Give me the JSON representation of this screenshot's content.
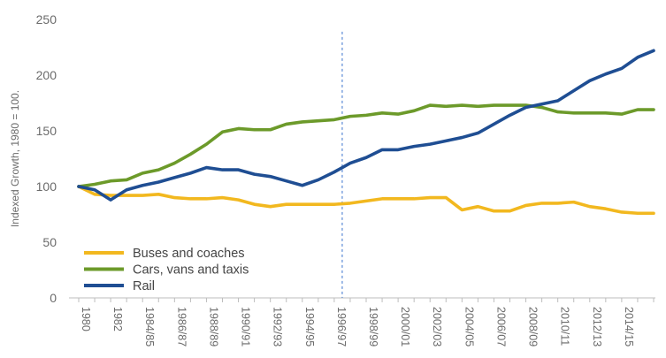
{
  "chart_data": {
    "type": "line",
    "title": "",
    "xlabel": "",
    "ylabel": "Indexed Growth, 1980 = 100.",
    "ylim": [
      0,
      250
    ],
    "yticks": [
      0,
      50,
      100,
      150,
      200,
      250
    ],
    "grid": false,
    "legend_position": "bottom-left",
    "x_tick_labels": [
      "1980",
      "1982",
      "1984/85",
      "1986/87",
      "1988/89",
      "1990/91",
      "1992/93",
      "1994/95",
      "1996/97",
      "1998/99",
      "2000/01",
      "2002/03",
      "2004/05",
      "2006/07",
      "2008/09",
      "2010/11",
      "2012/13",
      "2014/15"
    ],
    "x": [
      "1980",
      "1981",
      "1982",
      "1983",
      "1984/85",
      "1985/86",
      "1986/87",
      "1987/88",
      "1988/89",
      "1989/90",
      "1990/91",
      "1991/92",
      "1992/93",
      "1993/94",
      "1994/95",
      "1995/96",
      "1996/97",
      "1997/98",
      "1998/99",
      "1999/00",
      "2000/01",
      "2001/02",
      "2002/03",
      "2003/04",
      "2004/05",
      "2005/06",
      "2006/07",
      "2007/08",
      "2008/09",
      "2009/10",
      "2010/11",
      "2011/12",
      "2012/13",
      "2013/14",
      "2014/15",
      "2015/16",
      "2016/17"
    ],
    "reference_line_after": "1996/97",
    "series": [
      {
        "name": "Buses and coaches",
        "color": "#f2b81f",
        "values": [
          100,
          93,
          92,
          92,
          92,
          93,
          90,
          89,
          89,
          90,
          88,
          84,
          82,
          84,
          84,
          84,
          84,
          85,
          87,
          89,
          89,
          89,
          90,
          90,
          79,
          82,
          78,
          78,
          83,
          85,
          85,
          86,
          82,
          80,
          77,
          76,
          76
        ]
      },
      {
        "name": "Cars, vans and taxis",
        "color": "#6c9a2a",
        "values": [
          100,
          102,
          105,
          106,
          112,
          115,
          121,
          129,
          138,
          149,
          152,
          151,
          151,
          156,
          158,
          159,
          160,
          163,
          164,
          166,
          165,
          168,
          173,
          172,
          173,
          172,
          173,
          173,
          173,
          171,
          167,
          166,
          166,
          166,
          165,
          169,
          169
        ]
      },
      {
        "name": "Rail",
        "color": "#1f4e93",
        "values": [
          100,
          97,
          88,
          97,
          101,
          104,
          108,
          112,
          117,
          115,
          115,
          111,
          109,
          105,
          101,
          106,
          113,
          121,
          126,
          133,
          133,
          136,
          138,
          141,
          144,
          148,
          156,
          164,
          171,
          174,
          177,
          186,
          195,
          201,
          206,
          216,
          222
        ]
      }
    ]
  }
}
